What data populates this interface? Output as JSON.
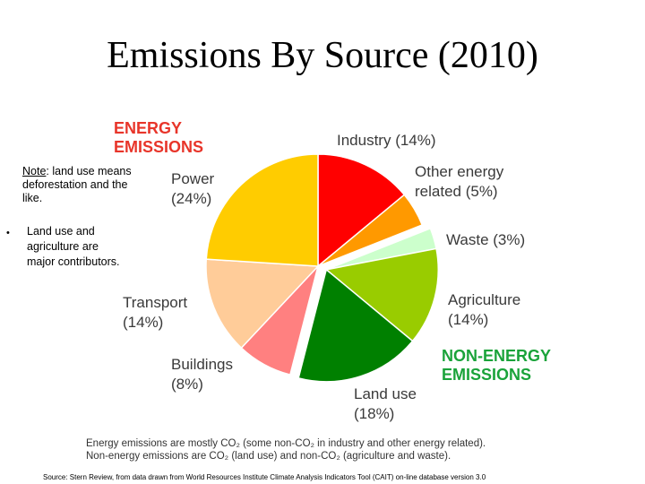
{
  "slide": {
    "title": "Emissions By Source (2010)"
  },
  "groups": {
    "energy": [
      "ENERGY",
      "EMISSIONS"
    ],
    "non_energy": [
      "NON-ENERGY",
      "EMISSIONS"
    ],
    "energy_color": "#e8352a",
    "non_energy_color": "#1aa33a"
  },
  "note": {
    "prefix": "Note",
    "text": ": land use means deforestation and the like."
  },
  "bullet": {
    "text": "Land use and agriculture are major contributors."
  },
  "chart_data": {
    "type": "pie",
    "exploded_group": "non-energy",
    "slices": [
      {
        "name": "Industry",
        "value": 14,
        "label": "(14%)",
        "color": "#ff0000",
        "group": "energy"
      },
      {
        "name": "Other energy related",
        "value": 5,
        "label": "(5%)",
        "color": "#ff9900",
        "group": "energy"
      },
      {
        "name": "Waste",
        "value": 3,
        "label": "(3%)",
        "color": "#ccffcc",
        "group": "non-energy"
      },
      {
        "name": "Agriculture",
        "value": 14,
        "label": "(14%)",
        "color": "#99cc00",
        "group": "non-energy"
      },
      {
        "name": "Land use",
        "value": 18,
        "label": "(18%)",
        "color": "#008000",
        "group": "non-energy"
      },
      {
        "name": "Buildings",
        "value": 8,
        "label": "(8%)",
        "color": "#ff8080",
        "group": "energy"
      },
      {
        "name": "Transport",
        "value": 14,
        "label": "(14%)",
        "color": "#ffcc99",
        "group": "energy"
      },
      {
        "name": "Power",
        "value": 24,
        "label": "(24%)",
        "color": "#ffcc00",
        "group": "energy"
      }
    ]
  },
  "labels": {
    "industry": "Industry (14%)",
    "other_energy": [
      "Other energy",
      "related (5%)"
    ],
    "waste": "Waste (3%)",
    "agriculture": [
      "Agriculture",
      "(14%)"
    ],
    "land_use": [
      "Land use",
      "(18%)"
    ],
    "buildings": [
      "Buildings",
      "(8%)"
    ],
    "transport": [
      "Transport",
      "(14%)"
    ],
    "power": [
      "Power",
      "(24%)"
    ]
  },
  "caption": {
    "line1": "Energy emissions are mostly CO₂ (some non-CO₂ in industry and other energy related).",
    "line2": "Non-energy emissions are CO₂ (land use) and non-CO₂ (agriculture and waste)."
  },
  "source": "Source:  Stern Review, from data drawn from World Resources Institute Climate Analysis Indicators Tool (CAIT) on-line database version 3.0"
}
